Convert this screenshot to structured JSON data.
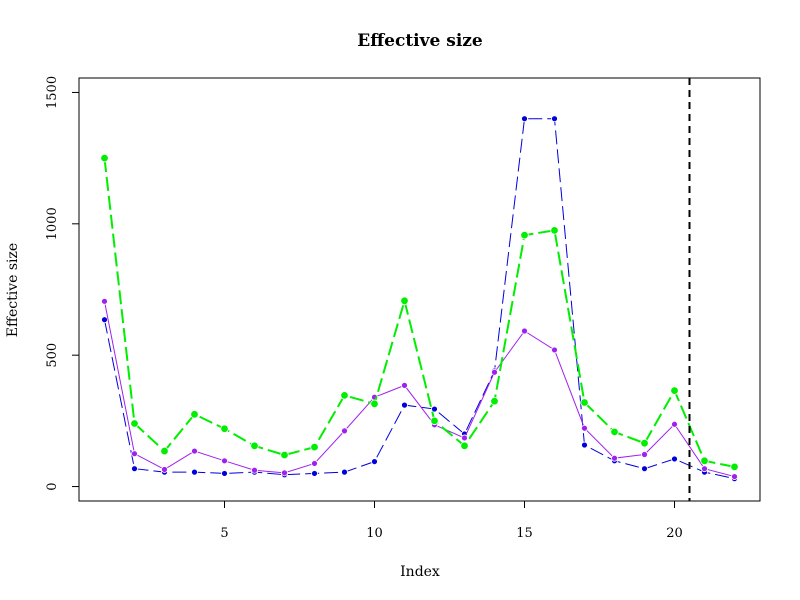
{
  "chart_data": {
    "type": "line",
    "title": "Effective size",
    "xlabel": "Index",
    "ylabel": "Effective size",
    "xlim": [
      0.15,
      22.85
    ],
    "ylim": [
      -55,
      1555
    ],
    "x_ticks": [
      5,
      10,
      15,
      20
    ],
    "y_ticks": [
      0,
      500,
      1000,
      1500
    ],
    "x": [
      1,
      2,
      3,
      4,
      5,
      6,
      7,
      8,
      9,
      10,
      11,
      12,
      13,
      14,
      15,
      16,
      17,
      18,
      19,
      20,
      21,
      22
    ],
    "series": [
      {
        "color": "#0000dd",
        "line": "dashed",
        "values": [
          635,
          68,
          55,
          55,
          50,
          55,
          45,
          50,
          55,
          95,
          310,
          295,
          200,
          440,
          1400,
          1400,
          158,
          98,
          68,
          105,
          55,
          30
        ]
      },
      {
        "color": "#a020f0",
        "line": "solid",
        "values": [
          705,
          125,
          65,
          135,
          98,
          62,
          52,
          88,
          212,
          340,
          385,
          235,
          185,
          435,
          592,
          520,
          222,
          108,
          122,
          237,
          68,
          38
        ]
      },
      {
        "color": "#00ee00",
        "line": "dashed",
        "values": [
          1250,
          240,
          135,
          275,
          220,
          155,
          120,
          150,
          347,
          315,
          707,
          250,
          155,
          325,
          957,
          975,
          320,
          208,
          165,
          365,
          98,
          75
        ]
      }
    ],
    "reference_line": {
      "x": 20.5,
      "color": "#000000",
      "style": "dashed"
    }
  }
}
